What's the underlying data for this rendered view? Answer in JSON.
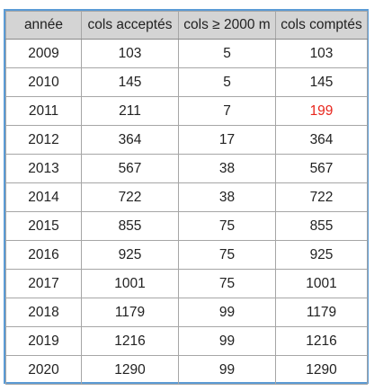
{
  "table": {
    "headers": [
      "année",
      "cols acceptés",
      "cols ≥ 2000 m",
      "cols comptés"
    ],
    "rows": [
      [
        "2009",
        "103",
        "5",
        "103"
      ],
      [
        "2010",
        "145",
        "5",
        "145"
      ],
      [
        "2011",
        "211",
        "7",
        "199"
      ],
      [
        "2012",
        "364",
        "17",
        "364"
      ],
      [
        "2013",
        "567",
        "38",
        "567"
      ],
      [
        "2014",
        "722",
        "38",
        "722"
      ],
      [
        "2015",
        "855",
        "75",
        "855"
      ],
      [
        "2016",
        "925",
        "75",
        "925"
      ],
      [
        "2017",
        "1001",
        "75",
        "1001"
      ],
      [
        "2018",
        "1179",
        "99",
        "1179"
      ],
      [
        "2019",
        "1216",
        "99",
        "1216"
      ],
      [
        "2020",
        "1290",
        "99",
        "1290"
      ]
    ]
  },
  "colors": {
    "border_accent": "#5b9bd5",
    "header_background": "#d4d4d4",
    "highlight_text": "#e8261d"
  }
}
